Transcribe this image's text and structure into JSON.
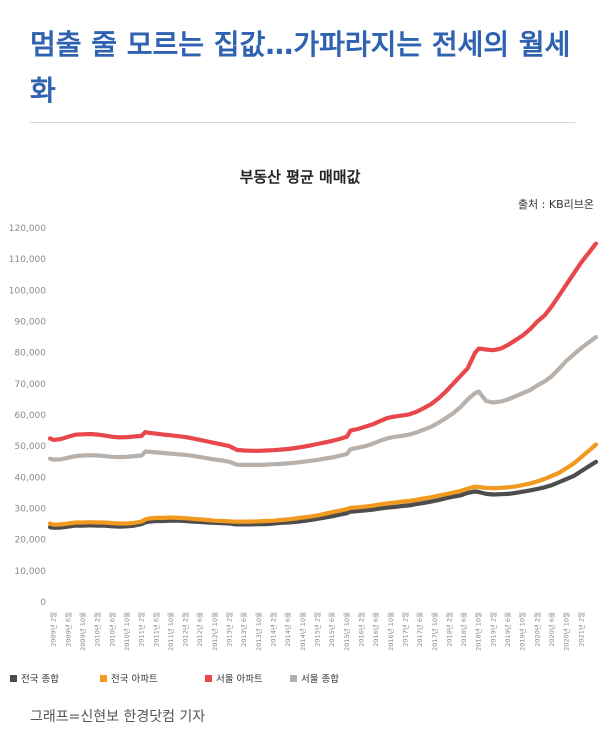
{
  "article": {
    "headline": "멈출 줄 모르는 집값…가파라지는 전세의 월세화",
    "caption": "그래프=신현보 한경닷컴 기자"
  },
  "chart_data": {
    "type": "line",
    "title": "부동산 평균 매매값",
    "source": "출처 : KB리브온",
    "ylim": [
      0,
      120000
    ],
    "yticks": [
      0,
      10000,
      20000,
      30000,
      40000,
      50000,
      60000,
      70000,
      80000,
      90000,
      100000,
      110000,
      120000
    ],
    "ytick_labels": [
      "0",
      "10,000",
      "20,000",
      "30,000",
      "40,000",
      "50,000",
      "60,000",
      "70,000",
      "80,000",
      "90,000",
      "100,000",
      "110,000",
      "120,000"
    ],
    "x_labels": [
      "2009년 2월",
      "2009년 6월",
      "2009년 10월",
      "2010년 2월",
      "2010년 6월",
      "2010년 10월",
      "2011년 2월",
      "2011년 6월",
      "2011년 10월",
      "2012년 2월",
      "2012년 6월",
      "2012년 10월",
      "2013년 2월",
      "2013년 6월",
      "2013년 10월",
      "2014년 2월",
      "2014년 6월",
      "2014년 10월",
      "2015년 2월",
      "2015년 6월",
      "2015년 10월",
      "2016년 2월",
      "2016년 6월",
      "2016년 10월",
      "2017년 2월",
      "2017년 6월",
      "2017년 10월",
      "2018년 2월",
      "2018년 6월",
      "2018년 10월",
      "2019년 2월",
      "2019년 6월",
      "2019년 10월",
      "2020년 2월",
      "2020년 6월",
      "2020년 10월",
      "2021년 2월"
    ],
    "x": [
      "2009-01",
      "2009-02",
      "2009-04",
      "2009-06",
      "2009-08",
      "2009-10",
      "2009-12",
      "2010-02",
      "2010-04",
      "2010-06",
      "2010-08",
      "2010-10",
      "2010-12",
      "2011-02",
      "2011-03",
      "2011-04",
      "2011-06",
      "2011-08",
      "2011-10",
      "2011-12",
      "2012-02",
      "2012-04",
      "2012-06",
      "2012-08",
      "2012-10",
      "2012-12",
      "2013-02",
      "2013-03",
      "2013-04",
      "2013-06",
      "2013-08",
      "2013-10",
      "2013-12",
      "2014-02",
      "2014-04",
      "2014-06",
      "2014-08",
      "2014-10",
      "2014-12",
      "2015-02",
      "2015-04",
      "2015-06",
      "2015-08",
      "2015-10",
      "2015-11",
      "2016-01",
      "2016-03",
      "2016-05",
      "2016-07",
      "2016-09",
      "2016-11",
      "2017-01",
      "2017-03",
      "2017-05",
      "2017-07",
      "2017-09",
      "2017-11",
      "2018-01",
      "2018-03",
      "2018-05",
      "2018-07",
      "2018-09",
      "2018-10",
      "2018-12",
      "2019-02",
      "2019-04",
      "2019-06",
      "2019-08",
      "2019-10",
      "2019-12",
      "2020-02",
      "2020-04",
      "2020-06",
      "2020-08",
      "2020-10",
      "2020-12",
      "2021-02",
      "2021-04",
      "2021-06"
    ],
    "series": [
      {
        "name": "전국 종합",
        "color": "#4d4d4d",
        "values": [
          24000,
          23800,
          23900,
          24200,
          24500,
          24500,
          24600,
          24500,
          24500,
          24300,
          24200,
          24300,
          24500,
          25000,
          25500,
          25800,
          26000,
          26000,
          26100,
          26100,
          26000,
          25800,
          25700,
          25500,
          25400,
          25300,
          25200,
          25000,
          24900,
          24900,
          24900,
          25000,
          25000,
          25200,
          25400,
          25500,
          25700,
          26000,
          26300,
          26700,
          27100,
          27500,
          28000,
          28500,
          29000,
          29200,
          29400,
          29600,
          30000,
          30300,
          30500,
          30800,
          31000,
          31400,
          31800,
          32200,
          32700,
          33300,
          33800,
          34200,
          35000,
          35500,
          35300,
          34700,
          34500,
          34600,
          34700,
          35000,
          35400,
          35800,
          36300,
          36800,
          37500,
          38500,
          39500,
          40500,
          42000,
          43500,
          45000
        ]
      },
      {
        "name": "전국 아파트",
        "color": "#f29a1f",
        "values": [
          25200,
          24800,
          24900,
          25200,
          25500,
          25500,
          25600,
          25500,
          25500,
          25300,
          25200,
          25200,
          25400,
          25800,
          26500,
          26800,
          27000,
          27000,
          27100,
          27000,
          26900,
          26700,
          26500,
          26300,
          26100,
          26000,
          25900,
          25800,
          25800,
          25800,
          25800,
          25900,
          26000,
          26100,
          26300,
          26500,
          26800,
          27100,
          27400,
          27800,
          28300,
          28800,
          29300,
          29800,
          30200,
          30400,
          30600,
          30900,
          31300,
          31600,
          31900,
          32200,
          32400,
          32800,
          33200,
          33600,
          34100,
          34600,
          35100,
          35600,
          36400,
          37000,
          36900,
          36600,
          36500,
          36600,
          36800,
          37100,
          37500,
          38000,
          38700,
          39500,
          40500,
          41500,
          43000,
          44500,
          46500,
          48500,
          50500
        ]
      },
      {
        "name": "서울 아파트",
        "color": "#e8474c",
        "values": [
          52500,
          52000,
          52300,
          53000,
          53700,
          53800,
          53900,
          53700,
          53400,
          53000,
          52800,
          52900,
          53100,
          53300,
          54500,
          54300,
          54000,
          53700,
          53500,
          53200,
          52900,
          52500,
          52000,
          51500,
          51000,
          50500,
          50000,
          49400,
          48800,
          48600,
          48500,
          48500,
          48600,
          48700,
          48900,
          49100,
          49400,
          49800,
          50200,
          50700,
          51200,
          51700,
          52300,
          53000,
          55000,
          55500,
          56200,
          57000,
          58000,
          59000,
          59500,
          59800,
          60200,
          61000,
          62200,
          63500,
          65300,
          67500,
          70000,
          72500,
          75000,
          80000,
          81300,
          81000,
          80800,
          81300,
          82500,
          84000,
          85500,
          87500,
          90000,
          92000,
          95000,
          98500,
          102000,
          105500,
          109000,
          112000,
          115000
        ]
      },
      {
        "name": "서울 종합",
        "color": "#b8b0aa",
        "values": [
          46000,
          45700,
          45800,
          46300,
          46800,
          47000,
          47100,
          47000,
          46800,
          46600,
          46500,
          46600,
          46800,
          47000,
          48300,
          48200,
          48000,
          47800,
          47600,
          47400,
          47200,
          46900,
          46500,
          46100,
          45700,
          45400,
          45000,
          44500,
          44100,
          44000,
          44000,
          44000,
          44100,
          44200,
          44300,
          44500,
          44700,
          45000,
          45300,
          45600,
          46000,
          46400,
          46900,
          47500,
          49000,
          49500,
          50000,
          50800,
          51700,
          52500,
          53000,
          53300,
          53700,
          54400,
          55300,
          56200,
          57500,
          59000,
          60500,
          62500,
          65000,
          67000,
          67500,
          64500,
          64000,
          64300,
          65000,
          66000,
          67000,
          68000,
          69500,
          70800,
          72500,
          75000,
          77500,
          79500,
          81500,
          83300,
          85000
        ]
      }
    ],
    "legend_position": "bottom-left",
    "grid": false
  }
}
